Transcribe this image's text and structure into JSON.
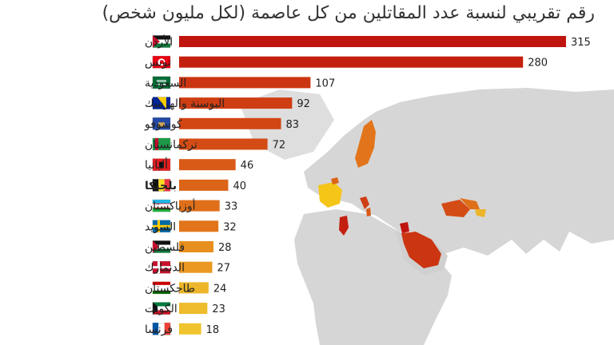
{
  "title": "رقم تقريبي لنسبة عدد المقاتلين من كل عاصمة (لكل مليون شخص)",
  "colors": {
    "high": "#c0150f",
    "mid": "#d9581a",
    "low": "#ecb52a",
    "highlight_europe": "#f5c518",
    "map_land": "#d6d6d6",
    "map_water": "#ffffff"
  },
  "chart_data": {
    "type": "bar",
    "orientation": "horizontal",
    "categories": [
      "الأردن",
      "تونس",
      "السعودية",
      "البوسنة والهرسك",
      "كوسوفو",
      "تركمانستان",
      "ألبانيا",
      "بلجيكا",
      "أوزباكستان",
      "السويد",
      "فلسطين",
      "الدنمارك",
      "طاجكستان",
      "الكويت",
      "فرنسا"
    ],
    "values": [
      315,
      280,
      107,
      92,
      83,
      72,
      46,
      40,
      33,
      32,
      28,
      27,
      24,
      23,
      18
    ],
    "bold_category": "بلجيكا",
    "xlim": [
      0,
      315
    ],
    "flags": [
      "jordan-flag-icon",
      "tunisia-flag-icon",
      "saudi-flag-icon",
      "bosnia-flag-icon",
      "kosovo-flag-icon",
      "turkmenistan-flag-icon",
      "albania-flag-icon",
      "belgium-flag-icon",
      "uzbekistan-flag-icon",
      "sweden-flag-icon",
      "palestine-flag-icon",
      "denmark-flag-icon",
      "tajikistan-flag-icon",
      "kuwait-flag-icon",
      "france-flag-icon"
    ],
    "bar_colors": [
      "#c0150f",
      "#c4200f",
      "#cc3512",
      "#cf3e13",
      "#d24614",
      "#d44c15",
      "#d95a17",
      "#dc6418",
      "#e06f1a",
      "#e2751b",
      "#e8901f",
      "#ea9821",
      "#ecb52a",
      "#eebb2c",
      "#f0c42e"
    ]
  }
}
